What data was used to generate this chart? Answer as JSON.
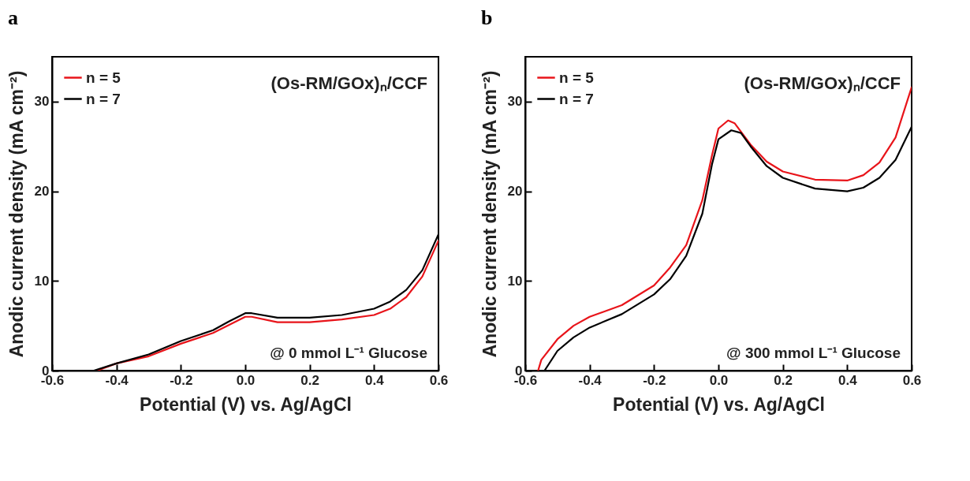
{
  "chart_data": [
    {
      "type": "line",
      "title": "a",
      "xlabel": "Potential (V) vs. Ag/AgCl",
      "ylabel": "Anodic current density (mA cm⁻²)",
      "annotations": [
        "(Os-RM/GOx)ₙ/CCF",
        "@ 0 mmol L⁻¹ Glucose"
      ],
      "xlim": [
        -0.6,
        0.6
      ],
      "xticks": [
        -0.6,
        -0.4,
        -0.2,
        {
          "value": 0,
          "label": "0.0"
        },
        0.2,
        0.4,
        0.6
      ],
      "ylim": [
        0,
        35
      ],
      "yticks": [
        0,
        10,
        20,
        30
      ],
      "legend": "top left",
      "series": [
        {
          "name": "n = 5",
          "color": "#e8141a",
          "x": [
            -0.46,
            -0.4,
            -0.3,
            -0.2,
            -0.1,
            -0.05,
            0,
            0.02,
            0.1,
            0.2,
            0.3,
            0.4,
            0.45,
            0.5,
            0.55,
            0.6
          ],
          "values": [
            0,
            0.8,
            1.6,
            3.0,
            4.2,
            5.1,
            6.0,
            6.0,
            5.4,
            5.4,
            5.7,
            6.2,
            6.9,
            8.2,
            10.5,
            14.5
          ]
        },
        {
          "name": "n = 7",
          "color": "#000000",
          "x": [
            -0.47,
            -0.4,
            -0.3,
            -0.2,
            -0.1,
            -0.05,
            0,
            0.02,
            0.1,
            0.2,
            0.3,
            0.4,
            0.45,
            0.5,
            0.55,
            0.6
          ],
          "values": [
            0,
            0.8,
            1.8,
            3.3,
            4.5,
            5.5,
            6.4,
            6.4,
            5.9,
            5.9,
            6.2,
            6.9,
            7.7,
            9.0,
            11.2,
            15.2
          ]
        }
      ]
    },
    {
      "type": "line",
      "title": "b",
      "xlabel": "Potential (V) vs. Ag/AgCl",
      "ylabel": "Anodic current density (mA cm⁻²)",
      "annotations": [
        "(Os-RM/GOx)ₙ/CCF",
        "@ 300 mmol L⁻¹ Glucose"
      ],
      "xlim": [
        -0.6,
        0.6
      ],
      "xticks": [
        -0.6,
        -0.4,
        -0.2,
        {
          "value": 0,
          "label": "0.0"
        },
        0.2,
        0.4,
        0.6
      ],
      "ylim": [
        0,
        35
      ],
      "yticks": [
        0,
        10,
        20,
        30
      ],
      "legend": "top left",
      "series": [
        {
          "name": "n = 5",
          "color": "#e8141a",
          "x": [
            -0.56,
            -0.55,
            -0.5,
            -0.45,
            -0.4,
            -0.3,
            -0.2,
            -0.15,
            -0.1,
            -0.05,
            -0.02,
            0,
            0.03,
            0.05,
            0.1,
            0.15,
            0.2,
            0.3,
            0.4,
            0.45,
            0.5,
            0.55,
            0.6
          ],
          "values": [
            0,
            1.2,
            3.5,
            5.0,
            6.0,
            7.3,
            9.5,
            11.5,
            14,
            19,
            24,
            27,
            27.9,
            27.6,
            25.2,
            23.3,
            22.2,
            21.3,
            21.2,
            21.8,
            23.2,
            26,
            31.6
          ]
        },
        {
          "name": "n = 7",
          "color": "#000000",
          "x": [
            -0.54,
            -0.5,
            -0.45,
            -0.4,
            -0.3,
            -0.2,
            -0.15,
            -0.1,
            -0.05,
            -0.02,
            0,
            0.04,
            0.07,
            0.1,
            0.15,
            0.2,
            0.3,
            0.4,
            0.45,
            0.5,
            0.55,
            0.6
          ],
          "values": [
            0,
            2.2,
            3.7,
            4.8,
            6.3,
            8.5,
            10.2,
            12.8,
            17.5,
            23,
            25.8,
            26.8,
            26.5,
            25,
            22.8,
            21.5,
            20.3,
            20.0,
            20.4,
            21.5,
            23.5,
            27.2
          ]
        }
      ]
    }
  ]
}
